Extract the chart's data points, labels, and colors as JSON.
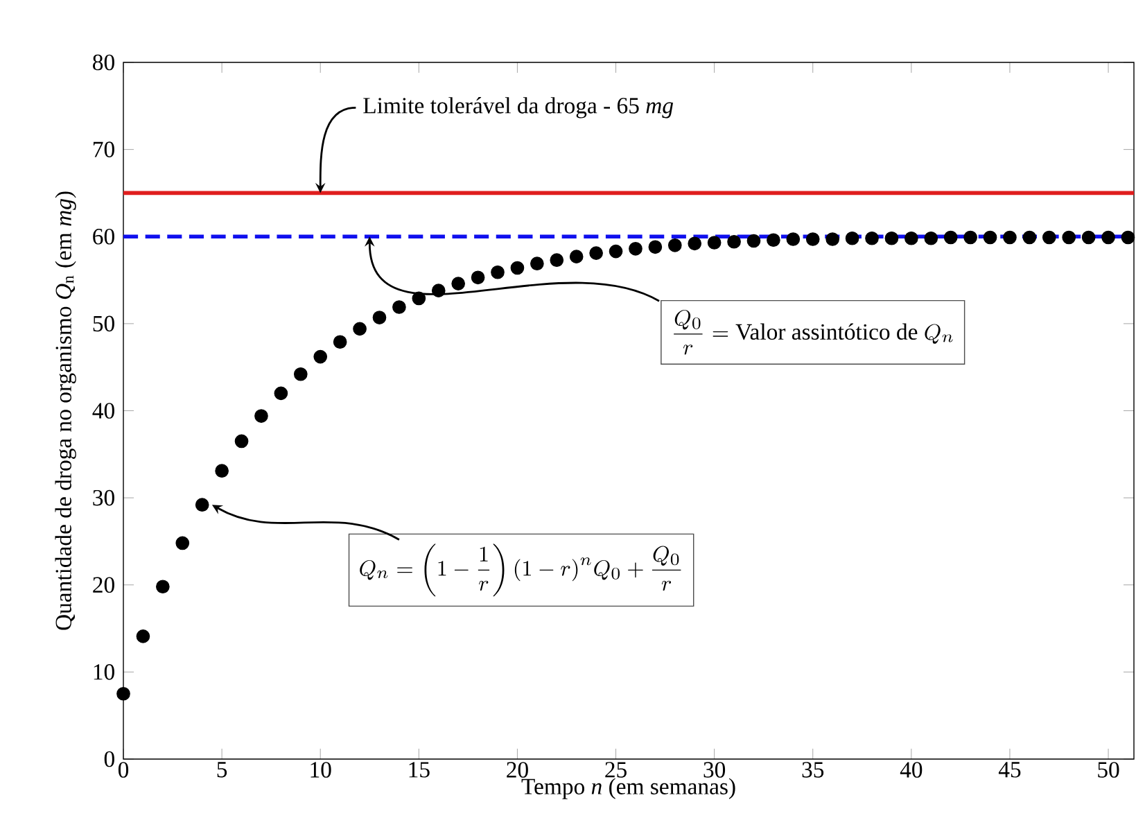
{
  "chart_data": {
    "type": "scatter",
    "xlabel": "Tempo *n* (em semanas)",
    "ylabel": "Quantidade de droga no organismo *Q*$_{n}$ (em *mg*)",
    "x": [
      0,
      1,
      2,
      3,
      4,
      5,
      6,
      7,
      8,
      9,
      10,
      11,
      12,
      13,
      14,
      15,
      16,
      17,
      18,
      19,
      20,
      21,
      22,
      23,
      24,
      25,
      26,
      27,
      28,
      29,
      30,
      31,
      32,
      33,
      34,
      35,
      36,
      37,
      38,
      39,
      40,
      41,
      42,
      43,
      44,
      45,
      46,
      47,
      48,
      49,
      50,
      51
    ],
    "values": [
      7.5,
      14.1,
      19.8,
      24.8,
      29.2,
      33.1,
      36.5,
      39.4,
      42.0,
      44.2,
      46.2,
      47.9,
      49.4,
      50.7,
      51.9,
      52.9,
      53.8,
      54.6,
      55.3,
      55.9,
      56.4,
      56.9,
      57.3,
      57.7,
      58.1,
      58.3,
      58.6,
      58.8,
      59.0,
      59.2,
      59.3,
      59.4,
      59.5,
      59.6,
      59.7,
      59.7,
      59.7,
      59.8,
      59.8,
      59.8,
      59.8,
      59.8,
      59.9,
      59.9,
      59.9,
      59.9,
      59.9,
      59.9,
      59.9,
      59.9,
      59.9,
      59.9
    ],
    "color": "#000000",
    "marker": "circle",
    "xlim": [
      0,
      51.3
    ],
    "ylim": [
      0,
      80
    ],
    "xticks": [
      0,
      5,
      10,
      15,
      20,
      25,
      30,
      35,
      40,
      45,
      50
    ],
    "yticks": [
      0,
      10,
      20,
      30,
      40,
      50,
      60,
      70,
      80
    ],
    "ref_lines": [
      {
        "axis": "y",
        "value": 65,
        "label": null,
        "color": "#e01e1e",
        "line_style": "solid"
      },
      {
        "axis": "y",
        "value": 60,
        "label": null,
        "color": "#1010ee",
        "line_style": "dashed"
      }
    ],
    "annotations": [
      {
        "text": "Limite tolerável da droga - 65 *mg*",
        "x": 10,
        "y": 65
      },
      {
        "text": "\\frac{Q_0}{r} = \\text{Valor assintótico de } Q_n",
        "x": 12.5,
        "y": 60
      },
      {
        "text": "Q_n = \\left(1 - \\frac{1}{r}\\right)(1-r)^n Q_0 + \\frac{Q_0}{r}",
        "x": 4.5,
        "y": 29.2
      }
    ]
  }
}
